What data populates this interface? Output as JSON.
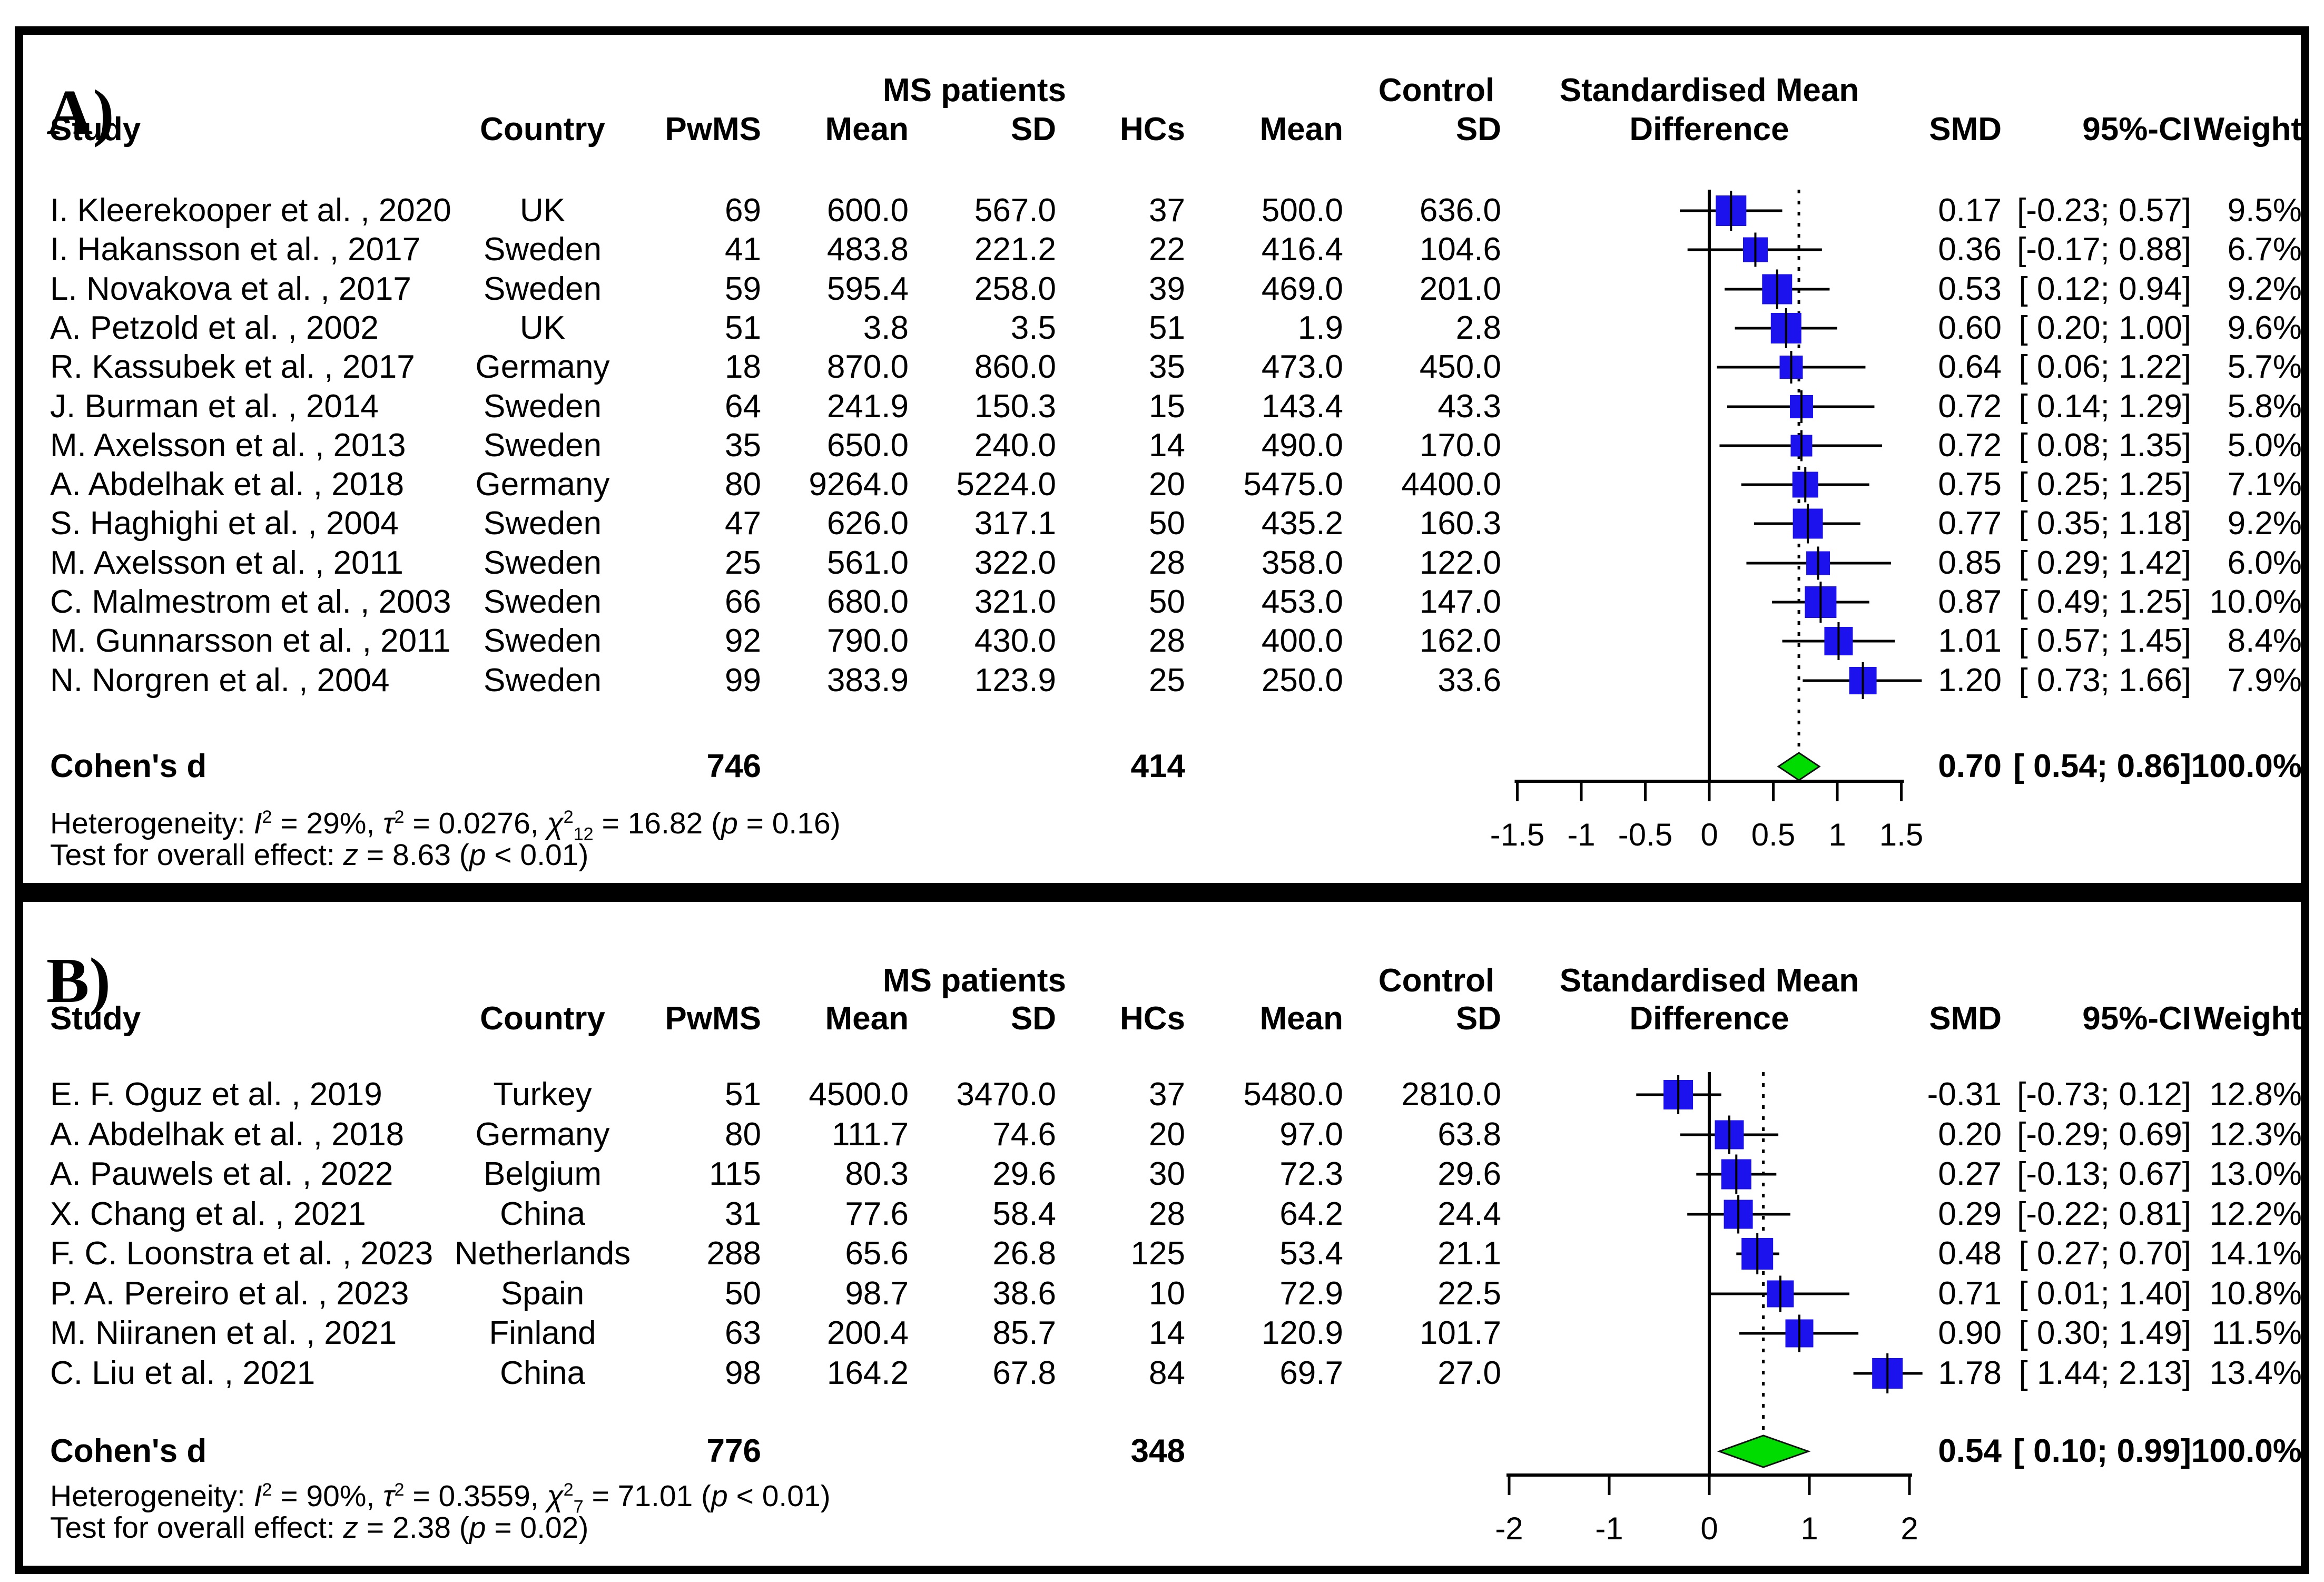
{
  "group_headers": {
    "ms_patients": "MS patients",
    "control": "Control",
    "smd_top": "Standardised Mean"
  },
  "columns": {
    "study": "Study",
    "country": "Country",
    "pwms": "PwMS",
    "mean_ms": "Mean",
    "sd_ms": "SD",
    "hcs": "HCs",
    "mean_hc": "Mean",
    "sd_hc": "SD",
    "difference": "Difference",
    "smd": "SMD",
    "ci": "95%-CI",
    "weight": "Weight"
  },
  "chart_data": {
    "type": "forest",
    "colors": {
      "marker": "#1c12ee",
      "summary_diamond": "#00dc00",
      "line": "#000000"
    },
    "panels": [
      {
        "label": "A)",
        "axis": {
          "min": -1.5,
          "max": 1.5,
          "ticks": [
            -1.5,
            -1,
            -0.5,
            0,
            0.5,
            1,
            1.5
          ],
          "tick_labels": [
            "-1.5",
            "-1",
            "-0.5",
            "0",
            "0.5",
            "1",
            "1.5"
          ],
          "zero_line": 0,
          "dashed_line": 0.7
        },
        "studies": [
          {
            "study": "I. Kleerekooper et al. , 2020",
            "country": "UK",
            "n_ms": "69",
            "mean_ms": "600.0",
            "sd_ms": "567.0",
            "n_hc": "37",
            "mean_hc": "500.0",
            "sd_hc": "636.0",
            "smd": 0.17,
            "lo": -0.23,
            "hi": 0.57,
            "smd_text": "0.17",
            "ci_text": "[-0.23; 0.57]",
            "weight": 9.5,
            "weight_text": "9.5%"
          },
          {
            "study": "I. Hakansson et al. , 2017",
            "country": "Sweden",
            "n_ms": "41",
            "mean_ms": "483.8",
            "sd_ms": "221.2",
            "n_hc": "22",
            "mean_hc": "416.4",
            "sd_hc": "104.6",
            "smd": 0.36,
            "lo": -0.17,
            "hi": 0.88,
            "smd_text": "0.36",
            "ci_text": "[-0.17; 0.88]",
            "weight": 6.7,
            "weight_text": "6.7%"
          },
          {
            "study": "L. Novakova et al. , 2017",
            "country": "Sweden",
            "n_ms": "59",
            "mean_ms": "595.4",
            "sd_ms": "258.0",
            "n_hc": "39",
            "mean_hc": "469.0",
            "sd_hc": "201.0",
            "smd": 0.53,
            "lo": 0.12,
            "hi": 0.94,
            "smd_text": "0.53",
            "ci_text": "[ 0.12; 0.94]",
            "weight": 9.2,
            "weight_text": "9.2%"
          },
          {
            "study": "A. Petzold et al. , 2002",
            "country": "UK",
            "n_ms": "51",
            "mean_ms": "3.8",
            "sd_ms": "3.5",
            "n_hc": "51",
            "mean_hc": "1.9",
            "sd_hc": "2.8",
            "smd": 0.6,
            "lo": 0.2,
            "hi": 1.0,
            "smd_text": "0.60",
            "ci_text": "[ 0.20; 1.00]",
            "weight": 9.6,
            "weight_text": "9.6%"
          },
          {
            "study": "R. Kassubek et al. , 2017",
            "country": "Germany",
            "n_ms": "18",
            "mean_ms": "870.0",
            "sd_ms": "860.0",
            "n_hc": "35",
            "mean_hc": "473.0",
            "sd_hc": "450.0",
            "smd": 0.64,
            "lo": 0.06,
            "hi": 1.22,
            "smd_text": "0.64",
            "ci_text": "[ 0.06; 1.22]",
            "weight": 5.7,
            "weight_text": "5.7%"
          },
          {
            "study": "J. Burman et al. , 2014",
            "country": "Sweden",
            "n_ms": "64",
            "mean_ms": "241.9",
            "sd_ms": "150.3",
            "n_hc": "15",
            "mean_hc": "143.4",
            "sd_hc": "43.3",
            "smd": 0.72,
            "lo": 0.14,
            "hi": 1.29,
            "smd_text": "0.72",
            "ci_text": "[ 0.14; 1.29]",
            "weight": 5.8,
            "weight_text": "5.8%"
          },
          {
            "study": "M. Axelsson et al. , 2013",
            "country": "Sweden",
            "n_ms": "35",
            "mean_ms": "650.0",
            "sd_ms": "240.0",
            "n_hc": "14",
            "mean_hc": "490.0",
            "sd_hc": "170.0",
            "smd": 0.72,
            "lo": 0.08,
            "hi": 1.35,
            "smd_text": "0.72",
            "ci_text": "[ 0.08; 1.35]",
            "weight": 5.0,
            "weight_text": "5.0%"
          },
          {
            "study": "A. Abdelhak et al. , 2018",
            "country": "Germany",
            "n_ms": "80",
            "mean_ms": "9264.0",
            "sd_ms": "5224.0",
            "n_hc": "20",
            "mean_hc": "5475.0",
            "sd_hc": "4400.0",
            "smd": 0.75,
            "lo": 0.25,
            "hi": 1.25,
            "smd_text": "0.75",
            "ci_text": "[ 0.25; 1.25]",
            "weight": 7.1,
            "weight_text": "7.1%"
          },
          {
            "study": "S. Haghighi et al. , 2004",
            "country": "Sweden",
            "n_ms": "47",
            "mean_ms": "626.0",
            "sd_ms": "317.1",
            "n_hc": "50",
            "mean_hc": "435.2",
            "sd_hc": "160.3",
            "smd": 0.77,
            "lo": 0.35,
            "hi": 1.18,
            "smd_text": "0.77",
            "ci_text": "[ 0.35; 1.18]",
            "weight": 9.2,
            "weight_text": "9.2%"
          },
          {
            "study": "M. Axelsson et al. , 2011",
            "country": "Sweden",
            "n_ms": "25",
            "mean_ms": "561.0",
            "sd_ms": "322.0",
            "n_hc": "28",
            "mean_hc": "358.0",
            "sd_hc": "122.0",
            "smd": 0.85,
            "lo": 0.29,
            "hi": 1.42,
            "smd_text": "0.85",
            "ci_text": "[ 0.29; 1.42]",
            "weight": 6.0,
            "weight_text": "6.0%"
          },
          {
            "study": "C. Malmestrom et al. , 2003",
            "country": "Sweden",
            "n_ms": "66",
            "mean_ms": "680.0",
            "sd_ms": "321.0",
            "n_hc": "50",
            "mean_hc": "453.0",
            "sd_hc": "147.0",
            "smd": 0.87,
            "lo": 0.49,
            "hi": 1.25,
            "smd_text": "0.87",
            "ci_text": "[ 0.49; 1.25]",
            "weight": 10.0,
            "weight_text": "10.0%"
          },
          {
            "study": "M. Gunnarsson et al. , 2011",
            "country": "Sweden",
            "n_ms": "92",
            "mean_ms": "790.0",
            "sd_ms": "430.0",
            "n_hc": "28",
            "mean_hc": "400.0",
            "sd_hc": "162.0",
            "smd": 1.01,
            "lo": 0.57,
            "hi": 1.45,
            "smd_text": "1.01",
            "ci_text": "[ 0.57; 1.45]",
            "weight": 8.4,
            "weight_text": "8.4%"
          },
          {
            "study": "N. Norgren et al. , 2004",
            "country": "Sweden",
            "n_ms": "99",
            "mean_ms": "383.9",
            "sd_ms": "123.9",
            "n_hc": "25",
            "mean_hc": "250.0",
            "sd_hc": "33.6",
            "smd": 1.2,
            "lo": 0.73,
            "hi": 1.66,
            "smd_text": "1.20",
            "ci_text": "[ 0.73; 1.66]",
            "weight": 7.9,
            "weight_text": "7.9%"
          }
        ],
        "summary": {
          "label": "Cohen's d",
          "n_ms": "746",
          "n_hc": "414",
          "smd": 0.7,
          "ci_lo": 0.54,
          "ci_hi": 0.86,
          "smd_text": "0.70",
          "ci_text": "[ 0.54; 0.86]",
          "weight_text": "100.0%"
        },
        "heterogeneity": [
          {
            "t": "Heterogeneity: "
          },
          {
            "t": "I",
            "i": true
          },
          {
            "t": "2",
            "sup": true
          },
          {
            "t": " = 29%, "
          },
          {
            "t": "τ",
            "i": true
          },
          {
            "t": "2",
            "sup": true
          },
          {
            "t": " = 0.0276, "
          },
          {
            "t": "χ",
            "i": true
          },
          {
            "t": "2",
            "sup": true
          },
          {
            "t": "12",
            "sub": true
          },
          {
            "t": " = 16.82 ("
          },
          {
            "t": "p",
            "i": true
          },
          {
            "t": " = 0.16)"
          }
        ],
        "overall_test": [
          {
            "t": "Test for overall effect: "
          },
          {
            "t": "z",
            "i": true
          },
          {
            "t": " = 8.63 ("
          },
          {
            "t": "p",
            "i": true
          },
          {
            "t": " < 0.01)"
          }
        ]
      },
      {
        "label": "B)",
        "axis": {
          "min": -2,
          "max": 2,
          "ticks": [
            -2,
            -1,
            0,
            1,
            2
          ],
          "tick_labels": [
            "-2",
            "-1",
            "0",
            "1",
            "2"
          ],
          "zero_line": 0,
          "dashed_line": 0.54
        },
        "studies": [
          {
            "study": "E. F. Oguz et al. , 2019",
            "country": "Turkey",
            "n_ms": "51",
            "mean_ms": "4500.0",
            "sd_ms": "3470.0",
            "n_hc": "37",
            "mean_hc": "5480.0",
            "sd_hc": "2810.0",
            "smd": -0.31,
            "lo": -0.73,
            "hi": 0.12,
            "smd_text": "-0.31",
            "ci_text": "[-0.73; 0.12]",
            "weight": 12.8,
            "weight_text": "12.8%"
          },
          {
            "study": "A. Abdelhak et al. , 2018",
            "country": "Germany",
            "n_ms": "80",
            "mean_ms": "111.7",
            "sd_ms": "74.6",
            "n_hc": "20",
            "mean_hc": "97.0",
            "sd_hc": "63.8",
            "smd": 0.2,
            "lo": -0.29,
            "hi": 0.69,
            "smd_text": "0.20",
            "ci_text": "[-0.29; 0.69]",
            "weight": 12.3,
            "weight_text": "12.3%"
          },
          {
            "study": "A. Pauwels et al. , 2022",
            "country": "Belgium",
            "n_ms": "115",
            "mean_ms": "80.3",
            "sd_ms": "29.6",
            "n_hc": "30",
            "mean_hc": "72.3",
            "sd_hc": "29.6",
            "smd": 0.27,
            "lo": -0.13,
            "hi": 0.67,
            "smd_text": "0.27",
            "ci_text": "[-0.13; 0.67]",
            "weight": 13.0,
            "weight_text": "13.0%"
          },
          {
            "study": "X. Chang et al. , 2021",
            "country": "China",
            "n_ms": "31",
            "mean_ms": "77.6",
            "sd_ms": "58.4",
            "n_hc": "28",
            "mean_hc": "64.2",
            "sd_hc": "24.4",
            "smd": 0.29,
            "lo": -0.22,
            "hi": 0.81,
            "smd_text": "0.29",
            "ci_text": "[-0.22; 0.81]",
            "weight": 12.2,
            "weight_text": "12.2%"
          },
          {
            "study": "F. C. Loonstra et al. , 2023",
            "country": "Netherlands",
            "n_ms": "288",
            "mean_ms": "65.6",
            "sd_ms": "26.8",
            "n_hc": "125",
            "mean_hc": "53.4",
            "sd_hc": "21.1",
            "smd": 0.48,
            "lo": 0.27,
            "hi": 0.7,
            "smd_text": "0.48",
            "ci_text": "[ 0.27; 0.70]",
            "weight": 14.1,
            "weight_text": "14.1%"
          },
          {
            "study": "P. A. Pereiro et al. , 2023",
            "country": "Spain",
            "n_ms": "50",
            "mean_ms": "98.7",
            "sd_ms": "38.6",
            "n_hc": "10",
            "mean_hc": "72.9",
            "sd_hc": "22.5",
            "smd": 0.71,
            "lo": 0.01,
            "hi": 1.4,
            "smd_text": "0.71",
            "ci_text": "[ 0.01; 1.40]",
            "weight": 10.8,
            "weight_text": "10.8%"
          },
          {
            "study": "M. Niiranen et al. , 2021",
            "country": "Finland",
            "n_ms": "63",
            "mean_ms": "200.4",
            "sd_ms": "85.7",
            "n_hc": "14",
            "mean_hc": "120.9",
            "sd_hc": "101.7",
            "smd": 0.9,
            "lo": 0.3,
            "hi": 1.49,
            "smd_text": "0.90",
            "ci_text": "[ 0.30; 1.49]",
            "weight": 11.5,
            "weight_text": "11.5%"
          },
          {
            "study": "C. Liu et al. , 2021",
            "country": "China",
            "n_ms": "98",
            "mean_ms": "164.2",
            "sd_ms": "67.8",
            "n_hc": "84",
            "mean_hc": "69.7",
            "sd_hc": "27.0",
            "smd": 1.78,
            "lo": 1.44,
            "hi": 2.13,
            "smd_text": "1.78",
            "ci_text": "[ 1.44; 2.13]",
            "weight": 13.4,
            "weight_text": "13.4%"
          }
        ],
        "summary": {
          "label": "Cohen's d",
          "n_ms": "776",
          "n_hc": "348",
          "smd": 0.54,
          "ci_lo": 0.1,
          "ci_hi": 0.99,
          "smd_text": "0.54",
          "ci_text": "[ 0.10; 0.99]",
          "weight_text": "100.0%"
        },
        "heterogeneity": [
          {
            "t": "Heterogeneity: "
          },
          {
            "t": "I",
            "i": true
          },
          {
            "t": "2",
            "sup": true
          },
          {
            "t": " = 90%, "
          },
          {
            "t": "τ",
            "i": true
          },
          {
            "t": "2",
            "sup": true
          },
          {
            "t": " = 0.3559, "
          },
          {
            "t": "χ",
            "i": true
          },
          {
            "t": "2",
            "sup": true
          },
          {
            "t": "7",
            "sub": true
          },
          {
            "t": " = 71.01 ("
          },
          {
            "t": "p",
            "i": true
          },
          {
            "t": " < 0.01)"
          }
        ],
        "overall_test": [
          {
            "t": "Test for overall effect: "
          },
          {
            "t": "z",
            "i": true
          },
          {
            "t": " = 2.38 ("
          },
          {
            "t": "p",
            "i": true
          },
          {
            "t": " = 0.02)"
          }
        ]
      }
    ]
  }
}
